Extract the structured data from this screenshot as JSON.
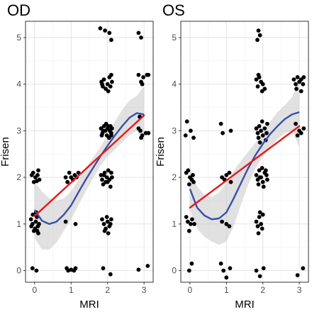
{
  "chart_data": [
    {
      "type": "scatter",
      "title": "OD",
      "xlabel": "MRI",
      "ylabel": "Frisen",
      "xlim": [
        -0.25,
        3.25
      ],
      "ylim": [
        -0.25,
        5.35
      ],
      "xticks": [
        "0",
        "1",
        "2",
        "3"
      ],
      "yticks": [
        "0",
        "1",
        "2",
        "3",
        "4",
        "5"
      ],
      "grid": true,
      "colors": {
        "points": "#000000",
        "linear_fit": "#e41a1c",
        "smooth_fit": "#3a4fa8",
        "band": "#c8c8c8"
      },
      "points": [
        [
          -0.08,
          2.05
        ],
        [
          -0.04,
          2.1
        ],
        [
          0.02,
          2.0
        ],
        [
          0.1,
          2.15
        ],
        [
          0.13,
          1.95
        ],
        [
          -0.02,
          1.9
        ],
        [
          0.06,
          1.92
        ],
        [
          0.08,
          2.05
        ],
        [
          -0.1,
          1.1
        ],
        [
          -0.06,
          1.0
        ],
        [
          -0.02,
          0.85
        ],
        [
          0.01,
          0.9
        ],
        [
          0.03,
          1.05
        ],
        [
          0.06,
          1.15
        ],
        [
          0.09,
          0.95
        ],
        [
          0.12,
          1.0
        ],
        [
          0.1,
          0.8
        ],
        [
          -0.09,
          0.95
        ],
        [
          -0.05,
          1.2
        ],
        [
          0.04,
          1.25
        ],
        [
          0.07,
          0.85
        ],
        [
          -0.06,
          0.05
        ],
        [
          0.05,
          0.0
        ],
        [
          0.85,
          2.0
        ],
        [
          0.9,
          1.9
        ],
        [
          0.95,
          2.1
        ],
        [
          1.0,
          2.0
        ],
        [
          1.05,
          1.95
        ],
        [
          1.1,
          2.05
        ],
        [
          1.15,
          2.0
        ],
        [
          1.2,
          2.1
        ],
        [
          0.85,
          1.05
        ],
        [
          1.12,
          1.0
        ],
        [
          0.88,
          0.05
        ],
        [
          0.92,
          0.0
        ],
        [
          1.0,
          0.02
        ],
        [
          1.08,
          0.0
        ],
        [
          1.12,
          0.05
        ],
        [
          1.8,
          5.2
        ],
        [
          1.93,
          5.15
        ],
        [
          2.05,
          5.1
        ],
        [
          2.1,
          4.95
        ],
        [
          1.83,
          4.05
        ],
        [
          1.87,
          3.95
        ],
        [
          1.9,
          4.1
        ],
        [
          1.95,
          3.9
        ],
        [
          2.0,
          4.0
        ],
        [
          2.05,
          4.15
        ],
        [
          2.08,
          3.95
        ],
        [
          2.1,
          4.2
        ],
        [
          2.12,
          4.05
        ],
        [
          1.85,
          4.0
        ],
        [
          2.02,
          3.85
        ],
        [
          1.82,
          3.05
        ],
        [
          1.86,
          2.95
        ],
        [
          1.9,
          3.1
        ],
        [
          1.94,
          3.0
        ],
        [
          1.98,
          2.9
        ],
        [
          2.02,
          3.1
        ],
        [
          2.06,
          3.0
        ],
        [
          2.1,
          2.95
        ],
        [
          2.12,
          3.05
        ],
        [
          1.84,
          2.9
        ],
        [
          1.96,
          3.15
        ],
        [
          2.04,
          2.85
        ],
        [
          2.08,
          3.1
        ],
        [
          1.88,
          3.0
        ],
        [
          2.0,
          3.05
        ],
        [
          2.1,
          2.9
        ],
        [
          1.82,
          2.05
        ],
        [
          1.85,
          1.95
        ],
        [
          1.88,
          1.85
        ],
        [
          1.92,
          2.1
        ],
        [
          1.95,
          1.9
        ],
        [
          1.98,
          2.0
        ],
        [
          2.02,
          2.15
        ],
        [
          2.05,
          1.95
        ],
        [
          2.08,
          1.8
        ],
        [
          2.12,
          2.0
        ],
        [
          1.9,
          2.05
        ],
        [
          2.0,
          1.9
        ],
        [
          2.1,
          2.1
        ],
        [
          1.85,
          1.1
        ],
        [
          1.9,
          1.0
        ],
        [
          1.95,
          0.9
        ],
        [
          2.0,
          1.05
        ],
        [
          2.05,
          0.95
        ],
        [
          2.1,
          1.1
        ],
        [
          1.92,
          0.85
        ],
        [
          2.02,
          0.8
        ],
        [
          2.08,
          1.0
        ],
        [
          1.98,
          1.15
        ],
        [
          1.88,
          0.05
        ],
        [
          2.08,
          -0.08
        ],
        [
          2.85,
          5.1
        ],
        [
          2.92,
          5.0
        ],
        [
          2.85,
          4.2
        ],
        [
          2.92,
          4.05
        ],
        [
          2.98,
          4.15
        ],
        [
          3.08,
          4.2
        ],
        [
          3.12,
          4.2
        ],
        [
          2.95,
          4.0
        ],
        [
          2.85,
          3.05
        ],
        [
          2.9,
          3.0
        ],
        [
          2.95,
          2.9
        ],
        [
          3.05,
          2.95
        ],
        [
          3.12,
          2.95
        ],
        [
          2.88,
          3.3
        ],
        [
          2.92,
          2.85
        ],
        [
          2.85,
          0.02
        ],
        [
          3.1,
          0.1
        ]
      ],
      "linear_fit": {
        "x": [
          0,
          3
        ],
        "y": [
          1.17,
          3.33
        ]
      },
      "smooth_fit": {
        "x": [
          0,
          0.2,
          0.4,
          0.6,
          0.8,
          1.0,
          1.2,
          1.4,
          1.6,
          1.8,
          2.0,
          2.2,
          2.4,
          2.6,
          2.8,
          3.0
        ],
        "y": [
          1.3,
          1.07,
          1.0,
          1.05,
          1.2,
          1.4,
          1.68,
          1.95,
          2.2,
          2.45,
          2.68,
          2.9,
          3.1,
          3.28,
          3.38,
          3.35
        ]
      },
      "band": {
        "x": [
          0,
          0.2,
          0.4,
          0.6,
          0.8,
          1.0,
          1.2,
          1.4,
          1.6,
          1.8,
          2.0,
          2.2,
          2.4,
          2.6,
          2.8,
          3.0
        ],
        "lower": [
          0.7,
          0.45,
          0.45,
          0.6,
          0.85,
          1.1,
          1.4,
          1.7,
          1.98,
          2.25,
          2.45,
          2.6,
          2.75,
          2.9,
          3.0,
          2.75
        ],
        "upper": [
          1.9,
          1.7,
          1.55,
          1.5,
          1.55,
          1.7,
          1.95,
          2.2,
          2.42,
          2.65,
          2.9,
          3.2,
          3.45,
          3.65,
          3.75,
          3.95
        ]
      }
    },
    {
      "type": "scatter",
      "title": "OS",
      "xlabel": "MRI",
      "ylabel": "Frisen",
      "xlim": [
        -0.25,
        3.25
      ],
      "ylim": [
        -0.25,
        5.35
      ],
      "xticks": [
        "0",
        "1",
        "2",
        "3"
      ],
      "yticks": [
        "0",
        "1",
        "2",
        "3",
        "4",
        "5"
      ],
      "grid": true,
      "colors": {
        "points": "#000000",
        "linear_fit": "#e41a1c",
        "smooth_fit": "#3a4fa8",
        "band": "#c8c8c8"
      },
      "points": [
        [
          -0.12,
          2.9
        ],
        [
          -0.08,
          3.2
        ],
        [
          0.02,
          3.0
        ],
        [
          0.1,
          2.85
        ],
        [
          -0.1,
          2.1
        ],
        [
          -0.05,
          2.15
        ],
        [
          0.0,
          2.0
        ],
        [
          0.05,
          1.95
        ],
        [
          0.1,
          1.9
        ],
        [
          -0.02,
          1.85
        ],
        [
          0.08,
          2.05
        ],
        [
          -0.1,
          1.15
        ],
        [
          -0.06,
          1.05
        ],
        [
          -0.02,
          0.85
        ],
        [
          0.02,
          1.0
        ],
        [
          0.06,
          1.1
        ],
        [
          0.12,
          1.0
        ],
        [
          0.05,
          0.15
        ],
        [
          -0.02,
          0.0
        ],
        [
          0.85,
          3.15
        ],
        [
          1.12,
          3.0
        ],
        [
          0.9,
          2.95
        ],
        [
          0.88,
          2.0
        ],
        [
          0.95,
          1.95
        ],
        [
          1.0,
          2.05
        ],
        [
          1.08,
          2.1
        ],
        [
          1.12,
          1.9
        ],
        [
          0.88,
          1.05
        ],
        [
          1.0,
          1.0
        ],
        [
          1.08,
          0.95
        ],
        [
          0.85,
          0.15
        ],
        [
          0.92,
          0.0
        ],
        [
          1.0,
          -0.15
        ],
        [
          1.1,
          0.05
        ],
        [
          1.88,
          5.15
        ],
        [
          1.92,
          5.05
        ],
        [
          1.85,
          4.95
        ],
        [
          1.82,
          4.1
        ],
        [
          1.86,
          3.95
        ],
        [
          1.9,
          4.15
        ],
        [
          1.95,
          4.05
        ],
        [
          2.0,
          4.0
        ],
        [
          2.05,
          3.9
        ],
        [
          1.88,
          4.2
        ],
        [
          1.98,
          3.85
        ],
        [
          1.82,
          3.05
        ],
        [
          1.86,
          2.95
        ],
        [
          1.9,
          3.1
        ],
        [
          1.95,
          3.0
        ],
        [
          2.0,
          2.9
        ],
        [
          2.05,
          3.05
        ],
        [
          2.1,
          2.95
        ],
        [
          2.12,
          3.15
        ],
        [
          1.88,
          2.85
        ],
        [
          1.98,
          3.2
        ],
        [
          2.08,
          2.8
        ],
        [
          1.92,
          2.75
        ],
        [
          1.82,
          2.05
        ],
        [
          1.86,
          1.95
        ],
        [
          1.9,
          2.15
        ],
        [
          1.95,
          2.0
        ],
        [
          2.0,
          1.9
        ],
        [
          2.05,
          2.1
        ],
        [
          2.1,
          2.05
        ],
        [
          2.12,
          1.95
        ],
        [
          1.88,
          1.85
        ],
        [
          1.98,
          2.2
        ],
        [
          2.02,
          1.8
        ],
        [
          2.08,
          2.15
        ],
        [
          1.92,
          2.0
        ],
        [
          1.82,
          1.05
        ],
        [
          1.86,
          0.95
        ],
        [
          1.9,
          1.15
        ],
        [
          1.95,
          1.0
        ],
        [
          2.0,
          1.2
        ],
        [
          1.88,
          0.8
        ],
        [
          1.98,
          0.9
        ],
        [
          1.92,
          1.25
        ],
        [
          1.82,
          0.0
        ],
        [
          1.92,
          -0.12
        ],
        [
          2.02,
          0.05
        ],
        [
          2.85,
          4.1
        ],
        [
          2.9,
          4.0
        ],
        [
          2.95,
          4.15
        ],
        [
          3.0,
          4.05
        ],
        [
          3.05,
          4.1
        ],
        [
          3.1,
          4.0
        ],
        [
          3.12,
          4.15
        ],
        [
          2.92,
          3.9
        ],
        [
          3.05,
          3.85
        ],
        [
          2.9,
          3.15
        ],
        [
          2.95,
          2.9
        ],
        [
          3.0,
          3.0
        ],
        [
          3.05,
          2.95
        ],
        [
          3.12,
          3.05
        ],
        [
          2.95,
          -0.1
        ],
        [
          3.1,
          0.05
        ]
      ],
      "linear_fit": {
        "x": [
          0,
          3
        ],
        "y": [
          1.35,
          3.1
        ]
      },
      "smooth_fit": {
        "x": [
          0,
          0.2,
          0.4,
          0.6,
          0.8,
          1.0,
          1.2,
          1.4,
          1.6,
          1.8,
          2.0,
          2.2,
          2.4,
          2.6,
          2.8,
          3.0
        ],
        "y": [
          1.75,
          1.35,
          1.18,
          1.1,
          1.12,
          1.25,
          1.55,
          1.88,
          2.2,
          2.48,
          2.72,
          2.93,
          3.1,
          3.25,
          3.35,
          3.4
        ]
      },
      "band": {
        "x": [
          0,
          0.2,
          0.4,
          0.6,
          0.8,
          1.0,
          1.2,
          1.4,
          1.6,
          1.8,
          2.0,
          2.2,
          2.4,
          2.6,
          2.8,
          3.0
        ],
        "lower": [
          1.3,
          0.9,
          0.72,
          0.62,
          0.55,
          0.62,
          0.95,
          1.42,
          1.85,
          2.2,
          2.45,
          2.65,
          2.82,
          2.95,
          3.0,
          2.65
        ],
        "upper": [
          2.2,
          1.8,
          1.62,
          1.58,
          1.68,
          1.88,
          2.15,
          2.35,
          2.55,
          2.75,
          2.98,
          3.2,
          3.4,
          3.55,
          3.72,
          4.1
        ]
      }
    }
  ]
}
